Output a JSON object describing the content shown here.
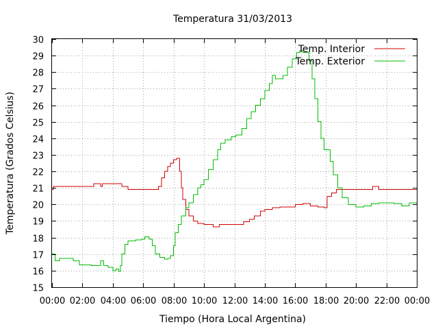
{
  "chart_data": {
    "type": "line",
    "title": "Temperatura 31/03/2013",
    "xlabel": "Tiempo (Hora Local Argentina)",
    "ylabel": "Temperatura (Grados Celsius)",
    "x_unit": "hours",
    "xlim": [
      0,
      24
    ],
    "ylim": [
      15,
      30
    ],
    "x_ticks": [
      0,
      2,
      4,
      6,
      8,
      10,
      12,
      14,
      16,
      18,
      20,
      22,
      24
    ],
    "x_tick_labels": [
      "00:00",
      "02:00",
      "04:00",
      "06:00",
      "08:00",
      "10:00",
      "12:00",
      "14:00",
      "16:00",
      "18:00",
      "20:00",
      "22:00",
      "00:00"
    ],
    "y_ticks": [
      15,
      16,
      17,
      18,
      19,
      20,
      21,
      22,
      23,
      24,
      25,
      26,
      27,
      28,
      29,
      30
    ],
    "y_tick_labels": [
      "15",
      "16",
      "17",
      "18",
      "19",
      "20",
      "21",
      "22",
      "23",
      "24",
      "25",
      "26",
      "27",
      "28",
      "29",
      "30"
    ],
    "grid": true,
    "legend_position": "top-right",
    "series": [
      {
        "name": "Temp. Interior",
        "color": "#cc0000",
        "points": [
          [
            0,
            20.9
          ],
          [
            0.1,
            21.1
          ],
          [
            1,
            21.1
          ],
          [
            2,
            21.1
          ],
          [
            2.7,
            21.1
          ],
          [
            2.75,
            21.25
          ],
          [
            3.1,
            21.25
          ],
          [
            3.2,
            21.1
          ],
          [
            3.3,
            21.25
          ],
          [
            4,
            21.25
          ],
          [
            4.5,
            21.25
          ],
          [
            4.6,
            21.1
          ],
          [
            4.9,
            21.1
          ],
          [
            5,
            20.9
          ],
          [
            6,
            20.9
          ],
          [
            6.9,
            20.9
          ],
          [
            7.0,
            21.1
          ],
          [
            7.2,
            21.6
          ],
          [
            7.4,
            22.0
          ],
          [
            7.6,
            22.3
          ],
          [
            7.8,
            22.5
          ],
          [
            8.0,
            22.7
          ],
          [
            8.2,
            22.8
          ],
          [
            8.3,
            22.8
          ],
          [
            8.4,
            22.0
          ],
          [
            8.5,
            21.0
          ],
          [
            8.6,
            20.3
          ],
          [
            8.8,
            19.7
          ],
          [
            9.0,
            19.3
          ],
          [
            9.3,
            19.0
          ],
          [
            9.6,
            18.85
          ],
          [
            10,
            18.8
          ],
          [
            10.5,
            18.8
          ],
          [
            10.6,
            18.65
          ],
          [
            10.9,
            18.65
          ],
          [
            11.0,
            18.8
          ],
          [
            12,
            18.8
          ],
          [
            12.4,
            18.8
          ],
          [
            12.6,
            18.95
          ],
          [
            13.0,
            19.1
          ],
          [
            13.3,
            19.3
          ],
          [
            13.7,
            19.6
          ],
          [
            14.0,
            19.7
          ],
          [
            14.5,
            19.8
          ],
          [
            15,
            19.85
          ],
          [
            15.5,
            19.85
          ],
          [
            16,
            20.0
          ],
          [
            16.5,
            20.05
          ],
          [
            17,
            19.9
          ],
          [
            17.5,
            19.85
          ],
          [
            17.9,
            19.8
          ],
          [
            18.1,
            20.5
          ],
          [
            18.4,
            20.7
          ],
          [
            18.7,
            20.9
          ],
          [
            19,
            20.9
          ],
          [
            20,
            20.9
          ],
          [
            21,
            20.9
          ],
          [
            21.1,
            21.1
          ],
          [
            21.4,
            21.1
          ],
          [
            21.5,
            20.9
          ],
          [
            22,
            20.9
          ],
          [
            23,
            20.9
          ],
          [
            24,
            20.9
          ]
        ]
      },
      {
        "name": "Temp. Exterior",
        "color": "#00bb00",
        "points": [
          [
            0,
            17.0
          ],
          [
            0.2,
            16.6
          ],
          [
            0.5,
            16.75
          ],
          [
            1,
            16.75
          ],
          [
            1.4,
            16.6
          ],
          [
            1.8,
            16.35
          ],
          [
            2.2,
            16.35
          ],
          [
            2.6,
            16.3
          ],
          [
            3.0,
            16.3
          ],
          [
            3.2,
            16.6
          ],
          [
            3.4,
            16.3
          ],
          [
            3.7,
            16.2
          ],
          [
            4.0,
            16.0
          ],
          [
            4.2,
            16.1
          ],
          [
            4.4,
            15.95
          ],
          [
            4.5,
            16.3
          ],
          [
            4.6,
            17.0
          ],
          [
            4.8,
            17.6
          ],
          [
            5.0,
            17.8
          ],
          [
            5.5,
            17.85
          ],
          [
            5.9,
            17.9
          ],
          [
            6.1,
            18.05
          ],
          [
            6.4,
            17.9
          ],
          [
            6.6,
            17.5
          ],
          [
            6.8,
            17.0
          ],
          [
            7.1,
            16.8
          ],
          [
            7.4,
            16.7
          ],
          [
            7.6,
            16.75
          ],
          [
            7.8,
            16.9
          ],
          [
            8.0,
            17.5
          ],
          [
            8.1,
            18.3
          ],
          [
            8.3,
            18.8
          ],
          [
            8.5,
            19.3
          ],
          [
            8.8,
            19.8
          ],
          [
            9.0,
            20.1
          ],
          [
            9.3,
            20.6
          ],
          [
            9.6,
            21.0
          ],
          [
            9.8,
            21.2
          ],
          [
            10.0,
            21.5
          ],
          [
            10.3,
            22.1
          ],
          [
            10.6,
            22.7
          ],
          [
            10.9,
            23.3
          ],
          [
            11.1,
            23.7
          ],
          [
            11.4,
            23.9
          ],
          [
            11.8,
            24.1
          ],
          [
            12.1,
            24.2
          ],
          [
            12.5,
            24.6
          ],
          [
            12.8,
            25.2
          ],
          [
            13.1,
            25.6
          ],
          [
            13.4,
            26.0
          ],
          [
            13.7,
            26.4
          ],
          [
            14.0,
            26.9
          ],
          [
            14.3,
            27.3
          ],
          [
            14.5,
            27.8
          ],
          [
            14.7,
            27.6
          ],
          [
            15.0,
            27.6
          ],
          [
            15.2,
            27.8
          ],
          [
            15.5,
            28.3
          ],
          [
            15.8,
            28.8
          ],
          [
            16.1,
            29.2
          ],
          [
            16.3,
            29.3
          ],
          [
            16.5,
            29.2
          ],
          [
            16.9,
            28.7
          ],
          [
            17.1,
            27.6
          ],
          [
            17.3,
            26.4
          ],
          [
            17.5,
            25.0
          ],
          [
            17.7,
            24.0
          ],
          [
            17.9,
            23.3
          ],
          [
            18.1,
            23.3
          ],
          [
            18.3,
            22.6
          ],
          [
            18.5,
            21.8
          ],
          [
            18.8,
            21.0
          ],
          [
            19.1,
            20.4
          ],
          [
            19.5,
            20.0
          ],
          [
            20.0,
            19.85
          ],
          [
            20.5,
            19.9
          ],
          [
            21,
            20.05
          ],
          [
            21.5,
            20.1
          ],
          [
            22,
            20.1
          ],
          [
            22.5,
            20.05
          ],
          [
            23,
            19.9
          ],
          [
            23.5,
            20.1
          ],
          [
            24,
            20.05
          ]
        ]
      }
    ]
  }
}
